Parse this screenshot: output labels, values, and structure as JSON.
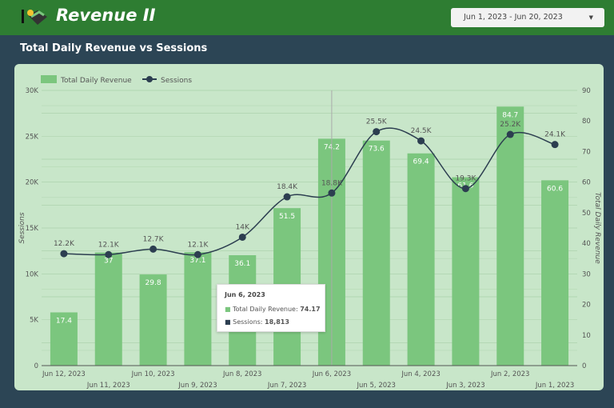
{
  "header": {
    "title": "Revenue II",
    "date_range": "Jun 1, 2023 - Jun 20, 2023"
  },
  "section_title": "Total Daily Revenue vs Sessions",
  "colors": {
    "bar": "#7bc67e",
    "line": "#2c3e50",
    "header": "#2e7d32"
  },
  "tooltip": {
    "date": "Jun 6, 2023",
    "rev_label": "Total Daily Revenue:",
    "rev_value": "74.17",
    "ses_label": "Sessions:",
    "ses_value": "18,813"
  },
  "chart_data": {
    "type": "bar+line",
    "categories": [
      "Jun 12, 2023",
      "Jun 11, 2023",
      "Jun 10, 2023",
      "Jun 9, 2023",
      "Jun 8, 2023",
      "Jun 7, 2023",
      "Jun 6, 2023",
      "Jun 5, 2023",
      "Jun 4, 2023",
      "Jun 3, 2023",
      "Jun 2, 2023",
      "Jun 1, 2023"
    ],
    "series": [
      {
        "name": "Total Daily Revenue",
        "type": "bar",
        "axis": "right",
        "values": [
          17.4,
          37,
          29.8,
          37.1,
          36.1,
          51.5,
          74.2,
          73.6,
          69.4,
          61.6,
          84.7,
          60.6
        ],
        "labels": [
          "17.4",
          "37",
          "29.8",
          "37.1",
          "36.1",
          "51.5",
          "74.2",
          "73.6",
          "69.4",
          "61.6",
          "84.7",
          "60.6"
        ]
      },
      {
        "name": "Sessions",
        "type": "line",
        "axis": "left",
        "values": [
          12200,
          12100,
          12700,
          12100,
          14000,
          18400,
          18813,
          25500,
          24500,
          19300,
          25200,
          24100
        ],
        "labels": [
          "12.2K",
          "12.1K",
          "12.7K",
          "12.1K",
          "14K",
          "18.4K",
          "18.8K",
          "25.5K",
          "24.5K",
          "19.3K",
          "25.2K",
          "24.1K"
        ]
      }
    ],
    "ylabel": "Sessions",
    "y2label": "Total Daily Revenue",
    "ylim": [
      0,
      30000
    ],
    "y2lim": [
      0,
      90
    ],
    "yticks": [
      "0",
      "5K",
      "10K",
      "15K",
      "20K",
      "25K",
      "30K"
    ],
    "y2ticks": [
      "0",
      "10",
      "20",
      "30",
      "40",
      "50",
      "60",
      "70",
      "80",
      "90"
    ],
    "legend": "top-left",
    "grid": true
  }
}
